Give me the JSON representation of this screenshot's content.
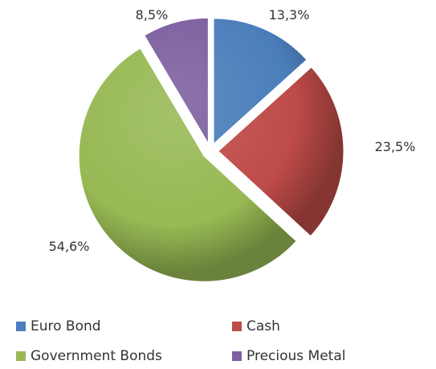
{
  "chart_data": {
    "type": "pie",
    "title": "",
    "categories": [
      "Euro Bond",
      "Cash",
      "Government Bonds",
      "Precious Metal"
    ],
    "values": [
      13.3,
      23.5,
      54.6,
      8.5
    ],
    "data_labels": [
      "13,3%",
      "23,5%",
      "54,6%",
      "8,5%"
    ],
    "colors": [
      "#4a7ebb",
      "#be4b48",
      "#98b954",
      "#7d60a0"
    ],
    "exploded": true,
    "legend_position": "bottom",
    "legend": [
      {
        "label": "Euro Bond",
        "color": "#4a7ebb"
      },
      {
        "label": "Cash",
        "color": "#be4b48"
      },
      {
        "label": "Government Bonds",
        "color": "#98b954"
      },
      {
        "label": "Precious Metal",
        "color": "#7d60a0"
      }
    ]
  }
}
